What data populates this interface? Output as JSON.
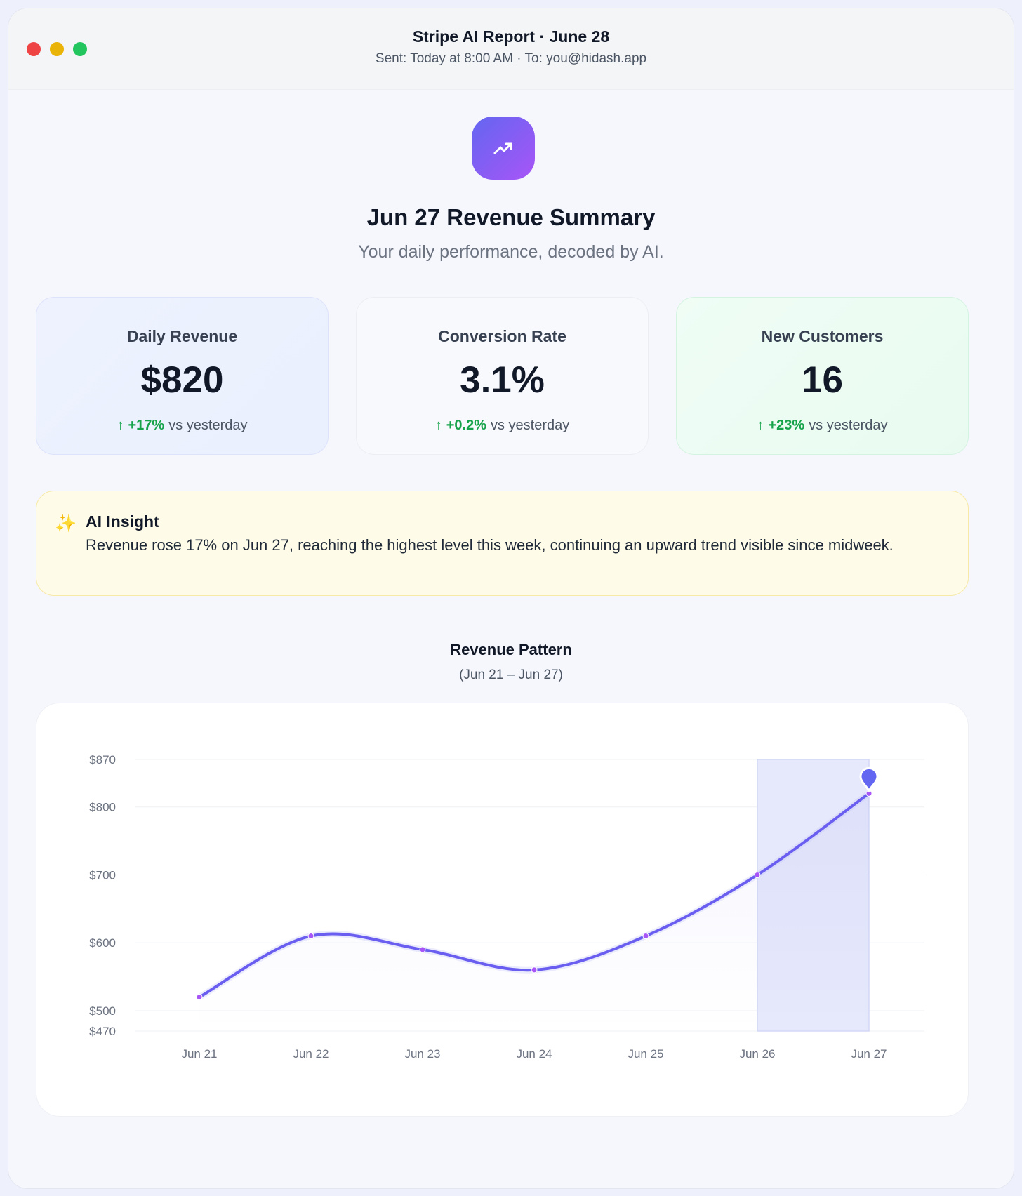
{
  "window": {
    "title": "Stripe AI Report · June 28",
    "subtitle": "Sent: Today at 8:00 AM · To: you@hidash.app",
    "controls": [
      "close",
      "minimize",
      "maximize"
    ]
  },
  "hero": {
    "icon": "trending-up-icon",
    "title": "Jun 27 Revenue Summary",
    "subtitle": "Your daily performance, decoded by AI."
  },
  "metrics": [
    {
      "label": "Daily Revenue",
      "value": "$820",
      "delta": "+17%",
      "delta_suffix": "vs yesterday",
      "arrow": "↑"
    },
    {
      "label": "Conversion Rate",
      "value": "3.1%",
      "delta": "+0.2%",
      "delta_suffix": "vs yesterday",
      "arrow": "↑"
    },
    {
      "label": "New Customers",
      "value": "16",
      "delta": "+23%",
      "delta_suffix": "vs yesterday",
      "arrow": "↑"
    }
  ],
  "insight": {
    "icon": "✨",
    "title": "AI Insight",
    "text": "Revenue rose 17% on Jun 27, reaching the highest level this week, continuing an upward trend visible since midweek."
  },
  "chart_header": {
    "title": "Revenue Pattern",
    "subtitle": "(Jun 21 – Jun 27)"
  },
  "colors": {
    "accent": "#6366f1",
    "accent_purple": "#a855f7",
    "positive": "#16a34a",
    "insight_bg": "#fefbe8"
  },
  "chart_data": {
    "type": "line",
    "categories": [
      "Jun 21",
      "Jun 22",
      "Jun 23",
      "Jun 24",
      "Jun 25",
      "Jun 26",
      "Jun 27"
    ],
    "series": [
      {
        "values": [
          520,
          610,
          590,
          560,
          610,
          700,
          820
        ]
      }
    ],
    "y_ticks": [
      {
        "value": 870,
        "label": "$870"
      },
      {
        "value": 800,
        "label": "$800"
      },
      {
        "value": 700,
        "label": "$700"
      },
      {
        "value": 600,
        "label": "$600"
      },
      {
        "value": 500,
        "label": "$500"
      },
      {
        "value": 470,
        "label": "$470"
      }
    ],
    "ylim": [
      470,
      870
    ],
    "highlight_range": [
      "Jun 26",
      "Jun 27"
    ],
    "highlight_point": "Jun 27",
    "grid": true
  }
}
